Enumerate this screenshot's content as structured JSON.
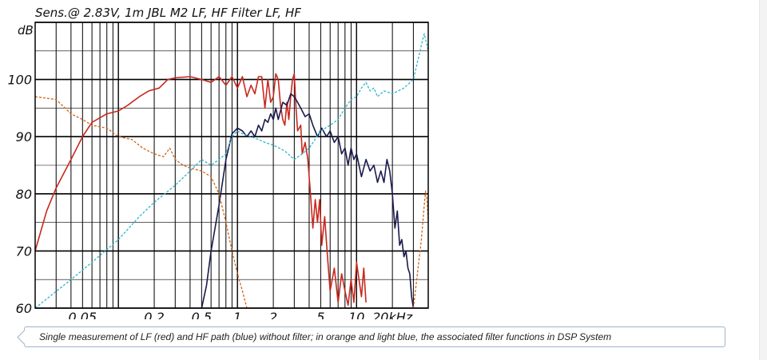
{
  "caption": "Single measurement of LF (red) and HF path (blue) without filter; in orange and light blue, the associated filter functions in DSP System",
  "chart_data": {
    "type": "line",
    "title": "Sens.@ 2.83V, 1m JBL M2 LF, HF   Filter LF, HF",
    "ylabel": "dB",
    "xlabel": "",
    "x_scale": "log",
    "xlim": [
      20,
      40000
    ],
    "ylim": [
      60,
      110
    ],
    "grid": true,
    "y_ticks": [
      60,
      70,
      80,
      90,
      100
    ],
    "y_tick_labels": [
      "60",
      "70",
      "80",
      "90",
      "100"
    ],
    "x_tick_labels": [
      {
        "x": 50,
        "label": "0.05"
      },
      {
        "x": 200,
        "label": "0.2"
      },
      {
        "x": 500,
        "label": "0.5"
      },
      {
        "x": 1000,
        "label": "1"
      },
      {
        "x": 2000,
        "label": "2"
      },
      {
        "x": 5000,
        "label": "5"
      },
      {
        "x": 10000,
        "label": "10"
      },
      {
        "x": 20000,
        "label": "20kHz"
      }
    ],
    "series": [
      {
        "color": "#c8281e",
        "style": "solid",
        "points": [
          [
            20,
            70
          ],
          [
            25,
            77
          ],
          [
            30,
            81
          ],
          [
            40,
            86
          ],
          [
            50,
            90
          ],
          [
            60,
            92.5
          ],
          [
            80,
            94
          ],
          [
            100,
            94.5
          ],
          [
            120,
            95.5
          ],
          [
            150,
            97
          ],
          [
            180,
            98
          ],
          [
            220,
            98.5
          ],
          [
            260,
            100
          ],
          [
            300,
            100.3
          ],
          [
            400,
            100.5
          ],
          [
            500,
            100
          ],
          [
            600,
            99.5
          ],
          [
            700,
            100.5
          ],
          [
            800,
            99
          ],
          [
            900,
            100.5
          ],
          [
            1000,
            98.5
          ],
          [
            1100,
            100.5
          ],
          [
            1200,
            97
          ],
          [
            1300,
            99
          ],
          [
            1400,
            97.5
          ],
          [
            1500,
            100.5
          ],
          [
            1600,
            100.5
          ],
          [
            1700,
            95
          ],
          [
            1800,
            100
          ],
          [
            1900,
            96
          ],
          [
            2000,
            97
          ],
          [
            2100,
            101
          ],
          [
            2200,
            100
          ],
          [
            2300,
            95.5
          ],
          [
            2400,
            93
          ],
          [
            2500,
            92
          ],
          [
            2600,
            96
          ],
          [
            2700,
            93
          ],
          [
            2800,
            97
          ],
          [
            2900,
            100
          ],
          [
            3000,
            101
          ],
          [
            3100,
            95
          ],
          [
            3200,
            91
          ],
          [
            3400,
            92
          ],
          [
            3500,
            87
          ],
          [
            3700,
            89
          ],
          [
            3900,
            86
          ],
          [
            4100,
            80
          ],
          [
            4300,
            74
          ],
          [
            4500,
            79
          ],
          [
            4700,
            75
          ],
          [
            4900,
            79
          ],
          [
            5100,
            71
          ],
          [
            5400,
            76
          ],
          [
            5700,
            69
          ],
          [
            6000,
            63
          ],
          [
            6500,
            67
          ],
          [
            7000,
            61
          ],
          [
            7500,
            66
          ],
          [
            8000,
            63
          ],
          [
            8500,
            60.5
          ],
          [
            9000,
            65
          ],
          [
            9500,
            61
          ],
          [
            10000,
            68
          ],
          [
            11000,
            62
          ],
          [
            11500,
            67
          ],
          [
            12000,
            61
          ]
        ]
      },
      {
        "color": "#1a1a4e",
        "style": "solid",
        "points": [
          [
            500,
            60
          ],
          [
            550,
            64
          ],
          [
            600,
            70
          ],
          [
            700,
            78
          ],
          [
            800,
            86
          ],
          [
            900,
            90.5
          ],
          [
            1000,
            91.5
          ],
          [
            1100,
            91
          ],
          [
            1200,
            90
          ],
          [
            1300,
            91
          ],
          [
            1400,
            90
          ],
          [
            1500,
            92
          ],
          [
            1600,
            91
          ],
          [
            1700,
            93
          ],
          [
            1800,
            92.5
          ],
          [
            1900,
            94
          ],
          [
            2000,
            93
          ],
          [
            2100,
            95
          ],
          [
            2200,
            93
          ],
          [
            2400,
            96
          ],
          [
            2600,
            95.5
          ],
          [
            2800,
            97.5
          ],
          [
            3000,
            97
          ],
          [
            3200,
            96
          ],
          [
            3400,
            95
          ],
          [
            3700,
            93.5
          ],
          [
            4000,
            94
          ],
          [
            4300,
            92
          ],
          [
            4700,
            90
          ],
          [
            5100,
            91.5
          ],
          [
            5600,
            90
          ],
          [
            6000,
            91
          ],
          [
            6500,
            89
          ],
          [
            7000,
            90
          ],
          [
            7500,
            87
          ],
          [
            8000,
            88
          ],
          [
            8500,
            85
          ],
          [
            9000,
            88
          ],
          [
            9500,
            86
          ],
          [
            10000,
            87
          ],
          [
            11000,
            83
          ],
          [
            12000,
            86
          ],
          [
            13000,
            84
          ],
          [
            14000,
            85
          ],
          [
            15000,
            82
          ],
          [
            16000,
            84
          ],
          [
            17000,
            82
          ],
          [
            18000,
            86
          ],
          [
            19000,
            84
          ],
          [
            20000,
            80
          ],
          [
            21000,
            74
          ],
          [
            22000,
            77
          ],
          [
            23000,
            71
          ],
          [
            24000,
            72
          ],
          [
            25000,
            69
          ],
          [
            26000,
            70
          ],
          [
            27000,
            67
          ],
          [
            28000,
            66
          ],
          [
            29000,
            62
          ],
          [
            30000,
            60
          ]
        ]
      },
      {
        "color": "#d26414",
        "style": "dashed",
        "points": [
          [
            20,
            97
          ],
          [
            30,
            96.5
          ],
          [
            40,
            94
          ],
          [
            50,
            93
          ],
          [
            60,
            92
          ],
          [
            80,
            91.5
          ],
          [
            100,
            90
          ],
          [
            130,
            89.5
          ],
          [
            160,
            88
          ],
          [
            200,
            87
          ],
          [
            240,
            86.5
          ],
          [
            270,
            88
          ],
          [
            300,
            86
          ],
          [
            350,
            85
          ],
          [
            400,
            84.5
          ],
          [
            500,
            84
          ],
          [
            600,
            83
          ],
          [
            700,
            80
          ],
          [
            800,
            75
          ],
          [
            900,
            70
          ],
          [
            1000,
            66
          ],
          [
            1100,
            63
          ],
          [
            1200,
            60
          ]
        ]
      },
      {
        "color": "#d26414",
        "style": "dashed",
        "points": [
          [
            30000,
            60
          ],
          [
            32000,
            65
          ],
          [
            35000,
            72
          ],
          [
            37000,
            78
          ],
          [
            38000,
            80.5
          ],
          [
            39000,
            79
          ],
          [
            40000,
            75
          ]
        ]
      },
      {
        "color": "#2eb4cc",
        "style": "dashed",
        "points": [
          [
            20,
            60
          ],
          [
            40,
            65
          ],
          [
            60,
            68
          ],
          [
            100,
            72
          ],
          [
            150,
            76
          ],
          [
            200,
            78.5
          ],
          [
            300,
            81.5
          ],
          [
            400,
            84
          ],
          [
            500,
            86
          ],
          [
            600,
            85
          ],
          [
            700,
            86
          ],
          [
            800,
            87
          ],
          [
            900,
            90
          ],
          [
            1000,
            91
          ],
          [
            1100,
            90.5
          ],
          [
            1300,
            90
          ],
          [
            1500,
            89.5
          ],
          [
            1700,
            89
          ],
          [
            2000,
            88.5
          ],
          [
            2500,
            87.5
          ],
          [
            3000,
            86
          ],
          [
            3500,
            87
          ],
          [
            4000,
            88
          ],
          [
            5000,
            91
          ],
          [
            6000,
            92
          ],
          [
            7000,
            93
          ],
          [
            8000,
            95
          ],
          [
            9000,
            96.5
          ],
          [
            10000,
            97
          ],
          [
            11000,
            98.5
          ],
          [
            12000,
            99.5
          ],
          [
            13000,
            98
          ],
          [
            14000,
            98.5
          ],
          [
            15000,
            97
          ],
          [
            17000,
            98
          ],
          [
            20000,
            97.5
          ],
          [
            25000,
            98.5
          ],
          [
            30000,
            100
          ],
          [
            35000,
            106
          ],
          [
            37000,
            108
          ],
          [
            38000,
            107
          ],
          [
            40000,
            105
          ]
        ]
      }
    ]
  }
}
